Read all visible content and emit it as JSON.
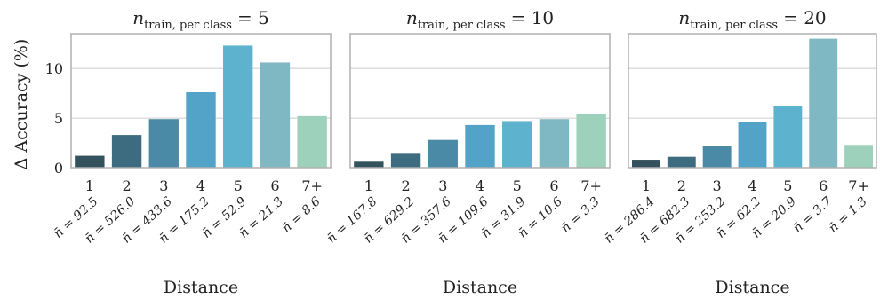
{
  "chart_data": {
    "type": "bar",
    "ylabel": "Δ Accuracy (%)",
    "ylim": [
      0,
      13.5
    ],
    "yticks": [
      0,
      5,
      10
    ],
    "grid": "horizontal",
    "palette": [
      "#34525e",
      "#3d6b80",
      "#4b8aa6",
      "#52a3c7",
      "#5db2cd",
      "#7fb8c2",
      "#9ed1bb"
    ],
    "panels": [
      {
        "title_main": "n",
        "title_sub": "train, per class",
        "title_value": "= 5",
        "xlabel": "Distance",
        "categories": [
          "1",
          "2",
          "3",
          "4",
          "5",
          "6",
          "7+"
        ],
        "values": [
          1.2,
          3.3,
          4.9,
          7.6,
          12.3,
          10.6,
          5.2
        ],
        "n_labels": [
          "n̄ = 92.5",
          "n̄ = 526.0",
          "n̄ = 433.6",
          "n̄ = 175.2",
          "n̄ = 52.9",
          "n̄ = 21.3",
          "n̄ = 8.6"
        ]
      },
      {
        "title_main": "n",
        "title_sub": "train, per class",
        "title_value": "= 10",
        "xlabel": "Distance",
        "categories": [
          "1",
          "2",
          "3",
          "4",
          "5",
          "6",
          "7+"
        ],
        "values": [
          0.6,
          1.4,
          2.8,
          4.3,
          4.7,
          4.9,
          5.4
        ],
        "n_labels": [
          "n̄ = 167.8",
          "n̄ = 629.2",
          "n̄ = 357.6",
          "n̄ = 109.6",
          "n̄ = 31.9",
          "n̄ = 10.6",
          "n̄ = 3.3"
        ]
      },
      {
        "title_main": "n",
        "title_sub": "train, per class",
        "title_value": "= 20",
        "xlabel": "Distance",
        "categories": [
          "1",
          "2",
          "3",
          "4",
          "5",
          "6",
          "7+"
        ],
        "values": [
          0.8,
          1.1,
          2.2,
          4.6,
          6.2,
          13.0,
          2.3
        ],
        "n_labels": [
          "n̄ = 286.4",
          "n̄ = 682.3",
          "n̄ = 253.2",
          "n̄ = 62.2",
          "n̄ = 20.9",
          "n̄ = 3.7",
          "n̄ = 1.3"
        ]
      }
    ]
  }
}
